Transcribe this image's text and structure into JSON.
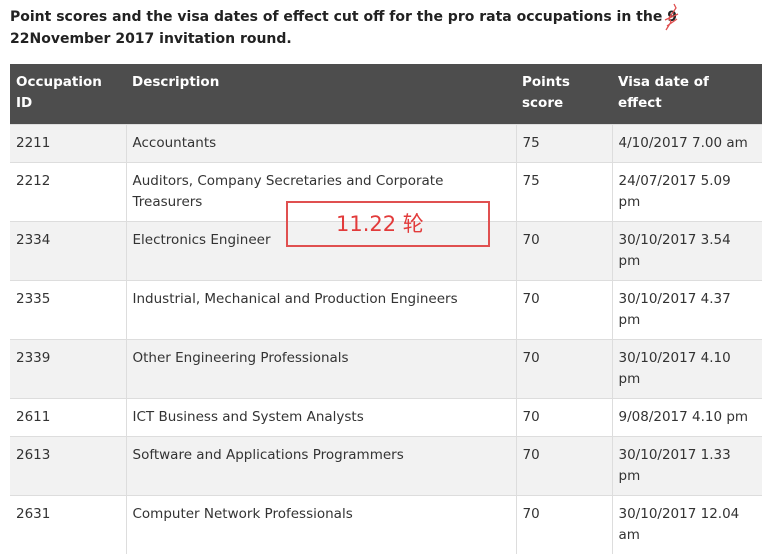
{
  "heading": {
    "before": "Point scores and the visa dates of effect cut off for the pro rata occupations in the ",
    "struck": "9",
    "after": "22November 2017 invitation round."
  },
  "colors": {
    "header_bg": "#4d4d4d",
    "annotation": "#e23b3b"
  },
  "table": {
    "headers": [
      "Occupation ID",
      "Description",
      "Points score",
      "Visa date of effect"
    ],
    "rows": [
      {
        "id": "2211",
        "description": "Accountants",
        "points": "75",
        "date": "4/10/2017 7.00 am"
      },
      {
        "id": "2212",
        "description": "Auditors, Company Secretaries and Corporate Treasurers",
        "points": "75",
        "date": "24/07/2017 5.09 pm"
      },
      {
        "id": "2334",
        "description": "Electronics Engineer",
        "points": "70",
        "date": "30/10/2017 3.54 pm"
      },
      {
        "id": "2335",
        "description": "Industrial, Mechanical and Production Engineers",
        "points": "70",
        "date": "30/10/2017 4.37 pm"
      },
      {
        "id": "2339",
        "description": "Other Engineering Professionals",
        "points": "70",
        "date": "30/10/2017 4.10 pm"
      },
      {
        "id": "2611",
        "description": "ICT Business and System Analysts",
        "points": "70",
        "date": "9/08/2017 4.10 pm"
      },
      {
        "id": "2613",
        "description": "Software and Applications Programmers",
        "points": "70",
        "date": "30/10/2017 1.33 pm"
      },
      {
        "id": "2631",
        "description": "Computer Network Professionals",
        "points": "70",
        "date": "30/10/2017 12.04 am"
      }
    ]
  },
  "annotation": {
    "text": "11.22 轮"
  }
}
